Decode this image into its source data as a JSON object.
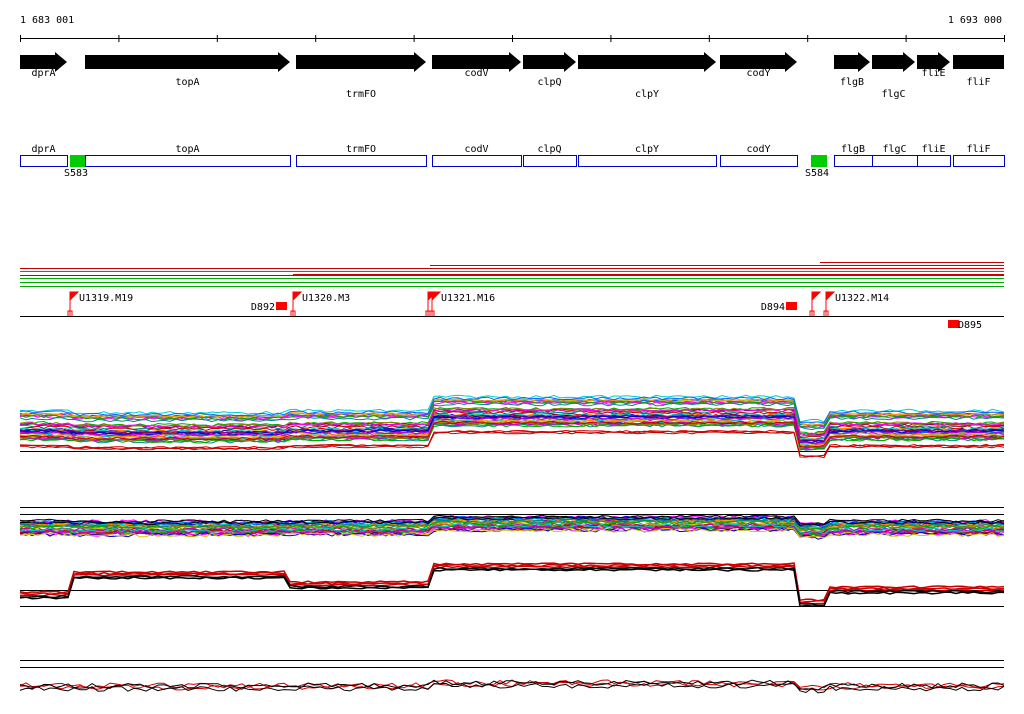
{
  "ruler": {
    "start": "1 683 001",
    "end": "1 693 000"
  },
  "genes": [
    "dprA",
    "topA",
    "trmFO",
    "codV",
    "clpQ",
    "clpY",
    "codY",
    "flgB",
    "flgC",
    "fliE",
    "fliF"
  ],
  "segments": [
    "dprA",
    "topA",
    "trmFO",
    "codV",
    "clpQ",
    "clpY",
    "codY",
    "flgB",
    "flgC",
    "fliE",
    "fliF"
  ],
  "sites": [
    "S583",
    "S584"
  ],
  "markers": [
    "U1319.M19",
    "D892",
    "U1320.M3",
    "U1321.M16",
    "D894",
    "U1322.M14",
    "D895"
  ]
}
